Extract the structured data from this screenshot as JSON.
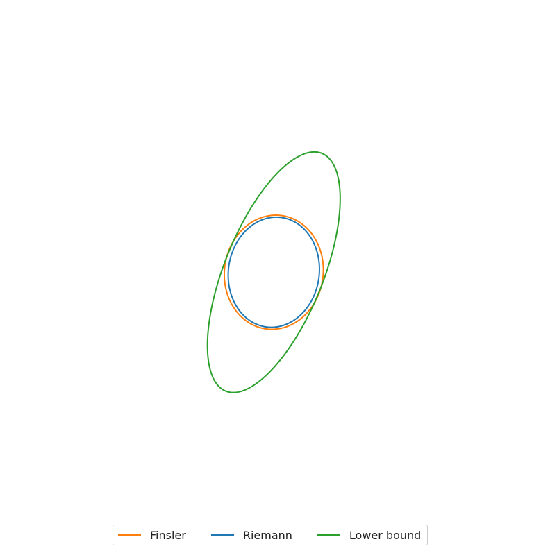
{
  "chart_data": {
    "type": "line",
    "title": "",
    "xlabel": "",
    "ylabel": "",
    "axes_visible": false,
    "aspect": "equal",
    "xlim": [
      -1.4,
      1.4
    ],
    "ylim": [
      -1.35,
      1.35
    ],
    "legend_position": "bottom-center",
    "series": [
      {
        "name": "Finsler",
        "color": "#ff7f0e",
        "shape": "closed-curve",
        "center": [
          0.03,
          -0.03
        ],
        "semi_axes": [
          0.5,
          0.58
        ],
        "rotation_deg": 8
      },
      {
        "name": "Riemann",
        "color": "#1f77b4",
        "shape": "ellipse",
        "center": [
          0.03,
          -0.03
        ],
        "semi_axes": [
          0.46,
          0.56
        ],
        "rotation_deg": 8
      },
      {
        "name": "Lower bound",
        "color": "#2ca02c",
        "shape": "ellipse",
        "center": [
          0.03,
          -0.03
        ],
        "semi_axes": [
          0.5,
          1.3
        ],
        "rotation_deg": 22
      }
    ]
  },
  "legend": {
    "items": [
      {
        "label": "Finsler",
        "color": "#ff7f0e"
      },
      {
        "label": "Riemann",
        "color": "#1f77b4"
      },
      {
        "label": "Lower bound",
        "color": "#2ca02c"
      }
    ]
  }
}
